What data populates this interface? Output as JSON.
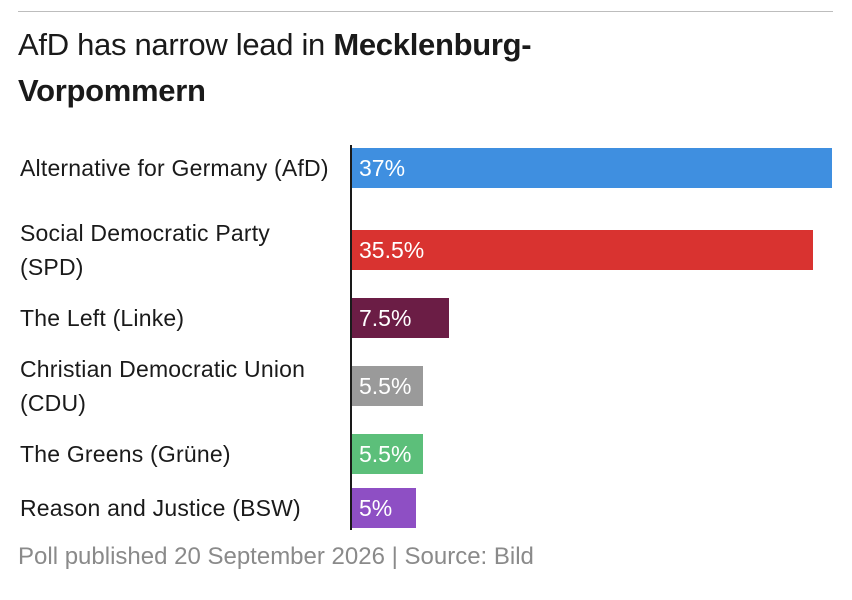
{
  "chart_data": {
    "type": "hbar",
    "title_parts": [
      "AfD has narrow lead in",
      "Mecklenburg-Vorpommern"
    ],
    "categories": [
      "Alternative for Germany (AfD)",
      "Social Democratic Party (SPD)",
      "The Left (Linke)",
      "Christian Democratic Union (CDU)",
      "The Greens (Grüne)",
      "Reason and Justice (BSW)"
    ],
    "values": [
      37,
      35.5,
      7.5,
      5.5,
      5.5,
      5
    ],
    "value_labels": [
      "37%",
      "35.5%",
      "7.5%",
      "5.5%",
      "5.5%",
      "5%"
    ],
    "colors": [
      "#3f8fe0",
      "#d93330",
      "#6b1d45",
      "#9a9a9a",
      "#5cbf7a",
      "#8e4fc4"
    ],
    "footnote": "Poll published 20 September 2026 | Source: Bild"
  }
}
